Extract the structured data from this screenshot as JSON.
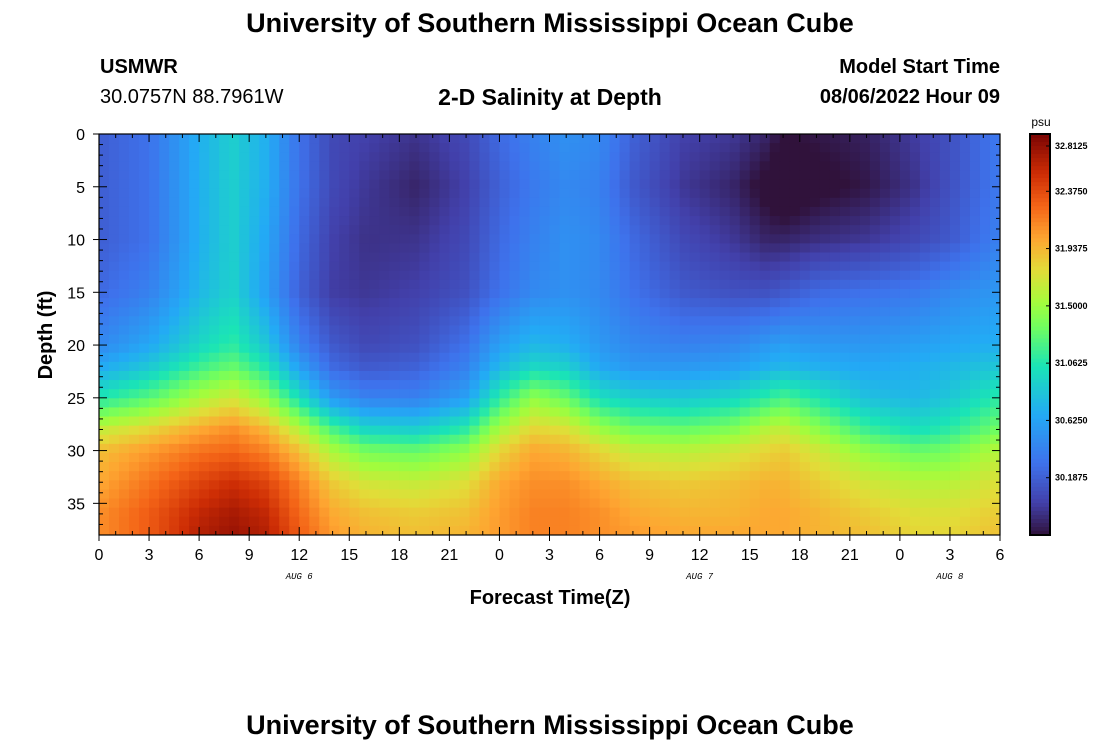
{
  "header": {
    "title": "University of Southern Mississippi Ocean Cube",
    "station": "USMWR",
    "coords": "30.0757N  88.7961W",
    "subtitle": "2-D Salinity at Depth",
    "model_start_label": "Model Start Time",
    "model_start_value": "08/06/2022 Hour 09"
  },
  "footer": {
    "title": "University of Southern Mississippi Ocean Cube"
  },
  "chart_data": {
    "type": "heatmap",
    "title": "2-D Salinity at Depth",
    "xlabel": "Forecast Time(Z)",
    "ylabel": "Depth (ft)",
    "x_tick_labels": [
      "0",
      "3",
      "6",
      "9",
      "12",
      "15",
      "18",
      "21",
      "0",
      "3",
      "6",
      "9",
      "12",
      "15",
      "18",
      "21",
      "0",
      "3",
      "6"
    ],
    "x_range_hours": [
      0,
      54
    ],
    "y_ticks": [
      0,
      5,
      10,
      15,
      20,
      25,
      30,
      35
    ],
    "y_range": [
      0,
      38
    ],
    "date_labels": [
      {
        "label": "AUG 6",
        "hour": 12
      },
      {
        "label": "AUG 7",
        "hour": 36
      },
      {
        "label": "AUG 8",
        "hour": 51
      }
    ],
    "colorbar": {
      "unit": "psu",
      "min": 29.75,
      "max": 32.8125,
      "tick_values": [
        32.8125,
        32.375,
        31.9375,
        31.5,
        31.0625,
        30.625,
        30.1875
      ],
      "tick_labels": [
        "32.8125",
        "32.3750",
        "31.9375",
        "31.5000",
        "31.0625",
        "30.6250",
        "30.1875"
      ]
    },
    "salinity_field": {
      "depth_ft": [
        0,
        5,
        10,
        15,
        20,
        22,
        25,
        28,
        30,
        33,
        36,
        38
      ],
      "forecast_hour": [
        0,
        3,
        6,
        8,
        10,
        12,
        14,
        16,
        19,
        22,
        24,
        26,
        28,
        30,
        32,
        35,
        38,
        40,
        41,
        43,
        46,
        49,
        51,
        54
      ],
      "salinity_psu": [
        [
          30.18,
          30.3,
          30.7,
          30.9,
          30.7,
          30.3,
          30.05,
          30.0,
          29.93,
          30.05,
          30.25,
          30.4,
          30.5,
          30.45,
          30.2,
          30.0,
          29.95,
          29.85,
          29.75,
          29.78,
          29.83,
          29.98,
          30.1,
          30.35
        ],
        [
          30.18,
          30.3,
          30.7,
          30.9,
          30.7,
          30.3,
          30.05,
          29.95,
          29.85,
          30.0,
          30.2,
          30.35,
          30.45,
          30.4,
          30.15,
          29.95,
          29.85,
          29.7,
          29.6,
          29.7,
          29.78,
          29.93,
          30.1,
          30.35
        ],
        [
          30.18,
          30.3,
          30.7,
          30.9,
          30.65,
          30.25,
          30.0,
          29.92,
          29.93,
          30.05,
          30.25,
          30.4,
          30.5,
          30.45,
          30.25,
          30.05,
          29.95,
          29.85,
          29.85,
          29.9,
          29.95,
          30.05,
          30.15,
          30.4
        ],
        [
          30.25,
          30.4,
          30.75,
          30.92,
          30.6,
          30.2,
          29.98,
          29.95,
          30.0,
          30.1,
          30.3,
          30.45,
          30.5,
          30.45,
          30.3,
          30.15,
          30.1,
          30.1,
          30.15,
          30.25,
          30.3,
          30.35,
          30.45,
          30.55
        ],
        [
          30.45,
          30.65,
          30.95,
          31.1,
          30.85,
          30.4,
          30.15,
          30.05,
          30.1,
          30.3,
          30.6,
          30.75,
          30.7,
          30.55,
          30.45,
          30.4,
          30.45,
          30.55,
          30.6,
          30.55,
          30.55,
          30.6,
          30.65,
          30.7
        ],
        [
          30.65,
          30.85,
          31.15,
          31.3,
          31.05,
          30.6,
          30.25,
          30.15,
          30.2,
          30.4,
          30.75,
          30.95,
          30.9,
          30.65,
          30.55,
          30.55,
          30.6,
          30.7,
          30.75,
          30.7,
          30.65,
          30.7,
          30.75,
          30.85
        ],
        [
          31.05,
          31.25,
          31.55,
          31.7,
          31.45,
          31.0,
          30.55,
          30.4,
          30.4,
          30.6,
          31.1,
          31.45,
          31.3,
          31.0,
          30.9,
          30.85,
          30.95,
          31.1,
          31.2,
          31.05,
          30.8,
          30.75,
          30.85,
          31.1
        ],
        [
          31.65,
          31.8,
          32.0,
          32.1,
          31.95,
          31.6,
          31.2,
          30.95,
          30.9,
          31.1,
          31.55,
          31.8,
          31.75,
          31.5,
          31.35,
          31.3,
          31.4,
          31.6,
          31.65,
          31.45,
          31.15,
          31.0,
          31.1,
          31.35
        ],
        [
          31.9,
          32.05,
          32.2,
          32.25,
          32.15,
          31.9,
          31.55,
          31.35,
          31.3,
          31.45,
          31.8,
          32.0,
          31.95,
          31.8,
          31.65,
          31.6,
          31.7,
          31.8,
          31.85,
          31.7,
          31.45,
          31.3,
          31.35,
          31.6
        ],
        [
          32.0,
          32.2,
          32.4,
          32.5,
          32.4,
          32.15,
          31.85,
          31.7,
          31.65,
          31.75,
          32.0,
          32.1,
          32.1,
          32.0,
          31.9,
          31.85,
          31.9,
          31.95,
          31.95,
          31.85,
          31.7,
          31.6,
          31.6,
          31.75
        ],
        [
          32.1,
          32.3,
          32.55,
          32.65,
          32.55,
          32.25,
          32.0,
          31.9,
          31.85,
          31.9,
          32.05,
          32.15,
          32.15,
          32.1,
          32.0,
          31.95,
          31.95,
          32.0,
          32.0,
          31.95,
          31.85,
          31.75,
          31.75,
          31.85
        ],
        [
          32.1,
          32.3,
          32.6,
          32.7,
          32.6,
          32.3,
          32.05,
          31.95,
          31.9,
          31.95,
          32.05,
          32.15,
          32.15,
          32.1,
          32.05,
          32.0,
          32.0,
          32.0,
          32.0,
          31.95,
          31.9,
          31.8,
          31.8,
          31.9
        ]
      ]
    }
  }
}
